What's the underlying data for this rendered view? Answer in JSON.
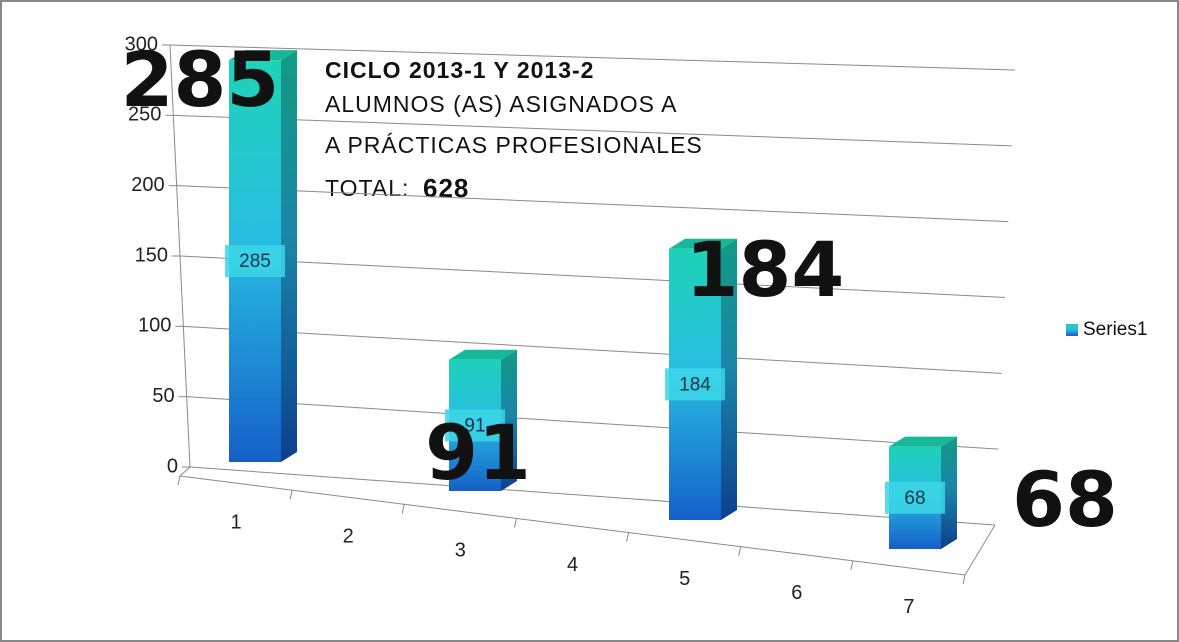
{
  "chart_data": {
    "type": "bar3d",
    "annotations": [
      "CICLO 2013-1 Y 2013-2",
      "ALUMNOS (AS) ASIGNADOS A",
      "A PRÁCTICAS PROFESIONALES"
    ],
    "total": {
      "label": "TOTAL:",
      "value": 628
    },
    "categories": [
      "1",
      "2",
      "3",
      "4",
      "5",
      "6",
      "7"
    ],
    "series": [
      {
        "name": "Series1",
        "color": "#1fa6d8",
        "values": [
          285,
          null,
          91,
          null,
          184,
          null,
          68
        ]
      }
    ],
    "ylim": [
      0,
      300
    ],
    "yticks": [
      0,
      50,
      100,
      150,
      200,
      250,
      300
    ],
    "grid": true,
    "legend": "right"
  }
}
